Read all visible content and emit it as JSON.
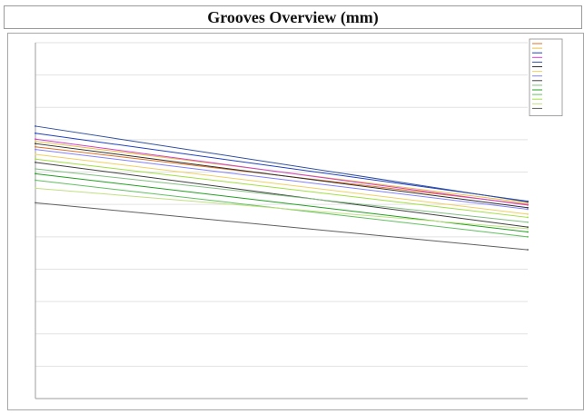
{
  "title": "Grooves Overview (mm)",
  "chart_data": {
    "type": "line",
    "title": "Grooves Overview (mm)",
    "x": [
      "",
      ""
    ],
    "y_ticks": [
      "",
      "",
      "",
      "",
      "",
      "",
      "",
      "",
      "",
      "",
      "",
      ""
    ],
    "ylim": [
      0,
      11
    ],
    "grid": true,
    "legend_position": "top-right",
    "series": [
      {
        "name": "",
        "color": "#e07020",
        "values": [
          7.78,
          6.0
        ]
      },
      {
        "name": "",
        "color": "#e8c040",
        "values": [
          7.95,
          6.05
        ]
      },
      {
        "name": "",
        "color": "#2040c0",
        "values": [
          8.2,
          6.1
        ]
      },
      {
        "name": "",
        "color": "#d040d0",
        "values": [
          8.02,
          5.98
        ]
      },
      {
        "name": "",
        "color": "#3050a0",
        "values": [
          8.42,
          6.08
        ]
      },
      {
        "name": "",
        "color": "#303030",
        "values": [
          7.88,
          5.9
        ]
      },
      {
        "name": "",
        "color": "#f0d060",
        "values": [
          7.55,
          5.7
        ]
      },
      {
        "name": "",
        "color": "#8080ff",
        "values": [
          7.7,
          5.85
        ]
      },
      {
        "name": "",
        "color": "#404040",
        "values": [
          7.3,
          5.3
        ]
      },
      {
        "name": "",
        "color": "#80c080",
        "values": [
          7.1,
          5.45
        ]
      },
      {
        "name": "",
        "color": "#20a020",
        "values": [
          6.95,
          5.15
        ]
      },
      {
        "name": "",
        "color": "#60c060",
        "values": [
          6.75,
          5.0
        ]
      },
      {
        "name": "",
        "color": "#a0e040",
        "values": [
          7.4,
          5.6
        ]
      },
      {
        "name": "",
        "color": "#c0e080",
        "values": [
          6.5,
          5.25
        ]
      },
      {
        "name": "",
        "color": "#606060",
        "values": [
          6.05,
          4.6
        ]
      }
    ]
  }
}
